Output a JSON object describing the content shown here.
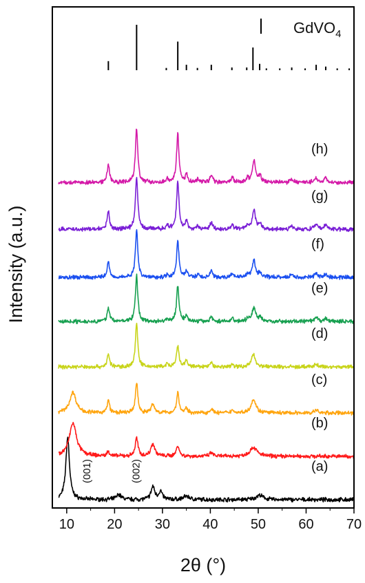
{
  "chart_data": {
    "type": "line",
    "xlabel": "2θ (°)",
    "ylabel": "Intensity (a.u.)",
    "xlim": [
      7,
      70
    ],
    "x_ticks": [
      10,
      20,
      30,
      40,
      50,
      60,
      70
    ],
    "reference": {
      "name": "GdVO4",
      "color": "#000000",
      "peaks": [
        {
          "x": 18.7,
          "h": 0.2
        },
        {
          "x": 24.6,
          "h": 1.0
        },
        {
          "x": 30.8,
          "h": 0.05
        },
        {
          "x": 33.2,
          "h": 0.63
        },
        {
          "x": 35.0,
          "h": 0.12
        },
        {
          "x": 37.3,
          "h": 0.05
        },
        {
          "x": 40.2,
          "h": 0.12
        },
        {
          "x": 44.5,
          "h": 0.06
        },
        {
          "x": 47.6,
          "h": 0.06
        },
        {
          "x": 48.9,
          "h": 0.5
        },
        {
          "x": 50.3,
          "h": 0.14
        },
        {
          "x": 51.7,
          "h": 0.04
        },
        {
          "x": 54.5,
          "h": 0.04
        },
        {
          "x": 57.0,
          "h": 0.06
        },
        {
          "x": 59.8,
          "h": 0.04
        },
        {
          "x": 62.1,
          "h": 0.12
        },
        {
          "x": 64.1,
          "h": 0.08
        },
        {
          "x": 66.5,
          "h": 0.04
        },
        {
          "x": 69.0,
          "h": 0.04
        }
      ]
    },
    "series": [
      {
        "name": "(a)",
        "color": "#000000",
        "peaks": [
          {
            "x": 10.2,
            "h": 4.3,
            "w": 0.45
          },
          {
            "x": 20.9,
            "h": 0.35,
            "w": 0.6
          },
          {
            "x": 28.0,
            "h": 0.9,
            "w": 0.45
          },
          {
            "x": 29.6,
            "h": 0.55,
            "w": 0.45
          },
          {
            "x": 35.0,
            "h": 0.25,
            "w": 0.7
          },
          {
            "x": 50.3,
            "h": 0.3,
            "w": 0.9
          }
        ],
        "annotations": [
          {
            "text": "(001)",
            "x": 10.6
          },
          {
            "text": "(002)",
            "x": 20.9
          }
        ]
      },
      {
        "name": "(b)",
        "color": "#ff1a1a",
        "peaks": [
          {
            "x": 11.3,
            "h": 2.4,
            "w": 0.9
          },
          {
            "x": 18.7,
            "h": 0.35,
            "w": 0.3
          },
          {
            "x": 24.6,
            "h": 1.3,
            "w": 0.35
          },
          {
            "x": 28.0,
            "h": 0.9,
            "w": 0.5
          },
          {
            "x": 33.2,
            "h": 0.8,
            "w": 0.35
          },
          {
            "x": 40.2,
            "h": 0.25,
            "w": 0.4
          },
          {
            "x": 49.0,
            "h": 0.65,
            "w": 0.9
          }
        ]
      },
      {
        "name": "(c)",
        "color": "#ffa50f",
        "peaks": [
          {
            "x": 11.3,
            "h": 1.5,
            "w": 0.8
          },
          {
            "x": 18.7,
            "h": 0.9,
            "w": 0.3
          },
          {
            "x": 24.6,
            "h": 2.2,
            "w": 0.3
          },
          {
            "x": 28.0,
            "h": 0.6,
            "w": 0.45
          },
          {
            "x": 33.2,
            "h": 1.5,
            "w": 0.3
          },
          {
            "x": 35.0,
            "h": 0.3,
            "w": 0.35
          },
          {
            "x": 40.2,
            "h": 0.3,
            "w": 0.35
          },
          {
            "x": 44.6,
            "h": 0.2,
            "w": 0.35
          },
          {
            "x": 49.0,
            "h": 1.0,
            "w": 0.6
          },
          {
            "x": 62.1,
            "h": 0.2,
            "w": 0.45
          }
        ]
      },
      {
        "name": "(d)",
        "color": "#c8d41a",
        "peaks": [
          {
            "x": 18.7,
            "h": 0.9,
            "w": 0.3
          },
          {
            "x": 24.6,
            "h": 3.1,
            "w": 0.3
          },
          {
            "x": 31.0,
            "h": 0.2,
            "w": 0.3
          },
          {
            "x": 33.2,
            "h": 1.5,
            "w": 0.3
          },
          {
            "x": 35.0,
            "h": 0.45,
            "w": 0.3
          },
          {
            "x": 40.2,
            "h": 0.3,
            "w": 0.3
          },
          {
            "x": 44.6,
            "h": 0.2,
            "w": 0.3
          },
          {
            "x": 49.0,
            "h": 0.9,
            "w": 0.5
          },
          {
            "x": 62.1,
            "h": 0.2,
            "w": 0.4
          }
        ]
      },
      {
        "name": "(e)",
        "color": "#17a050",
        "peaks": [
          {
            "x": 18.7,
            "h": 1.0,
            "w": 0.3
          },
          {
            "x": 24.6,
            "h": 3.3,
            "w": 0.3
          },
          {
            "x": 31.0,
            "h": 0.2,
            "w": 0.3
          },
          {
            "x": 33.2,
            "h": 2.6,
            "w": 0.3
          },
          {
            "x": 35.0,
            "h": 0.45,
            "w": 0.3
          },
          {
            "x": 40.2,
            "h": 0.35,
            "w": 0.3
          },
          {
            "x": 44.6,
            "h": 0.25,
            "w": 0.3
          },
          {
            "x": 47.8,
            "h": 0.2,
            "w": 0.3
          },
          {
            "x": 49.1,
            "h": 1.0,
            "w": 0.45
          },
          {
            "x": 50.4,
            "h": 0.3,
            "w": 0.3
          },
          {
            "x": 62.1,
            "h": 0.25,
            "w": 0.4
          },
          {
            "x": 64.1,
            "h": 0.2,
            "w": 0.4
          }
        ]
      },
      {
        "name": "(f)",
        "color": "#1a4ff0",
        "peaks": [
          {
            "x": 18.7,
            "h": 1.1,
            "w": 0.3
          },
          {
            "x": 24.6,
            "h": 3.4,
            "w": 0.3
          },
          {
            "x": 31.0,
            "h": 0.2,
            "w": 0.3
          },
          {
            "x": 33.2,
            "h": 2.6,
            "w": 0.3
          },
          {
            "x": 35.0,
            "h": 0.45,
            "w": 0.3
          },
          {
            "x": 37.4,
            "h": 0.2,
            "w": 0.3
          },
          {
            "x": 40.2,
            "h": 0.45,
            "w": 0.3
          },
          {
            "x": 44.6,
            "h": 0.3,
            "w": 0.3
          },
          {
            "x": 47.8,
            "h": 0.25,
            "w": 0.3
          },
          {
            "x": 49.1,
            "h": 1.2,
            "w": 0.4
          },
          {
            "x": 50.4,
            "h": 0.35,
            "w": 0.3
          },
          {
            "x": 57.0,
            "h": 0.2,
            "w": 0.4
          },
          {
            "x": 62.1,
            "h": 0.3,
            "w": 0.35
          },
          {
            "x": 64.1,
            "h": 0.25,
            "w": 0.35
          }
        ]
      },
      {
        "name": "(g)",
        "color": "#7a1fd6",
        "peaks": [
          {
            "x": 18.7,
            "h": 1.2,
            "w": 0.3
          },
          {
            "x": 24.6,
            "h": 3.6,
            "w": 0.3
          },
          {
            "x": 31.0,
            "h": 0.25,
            "w": 0.3
          },
          {
            "x": 33.2,
            "h": 3.3,
            "w": 0.3
          },
          {
            "x": 35.0,
            "h": 0.5,
            "w": 0.3
          },
          {
            "x": 37.4,
            "h": 0.2,
            "w": 0.3
          },
          {
            "x": 40.2,
            "h": 0.5,
            "w": 0.3
          },
          {
            "x": 44.6,
            "h": 0.35,
            "w": 0.3
          },
          {
            "x": 47.8,
            "h": 0.25,
            "w": 0.3
          },
          {
            "x": 49.1,
            "h": 1.3,
            "w": 0.4
          },
          {
            "x": 50.4,
            "h": 0.4,
            "w": 0.3
          },
          {
            "x": 57.0,
            "h": 0.2,
            "w": 0.4
          },
          {
            "x": 62.1,
            "h": 0.35,
            "w": 0.35
          },
          {
            "x": 64.1,
            "h": 0.3,
            "w": 0.35
          }
        ]
      },
      {
        "name": "(h)",
        "color": "#d41aa8",
        "peaks": [
          {
            "x": 18.7,
            "h": 1.2,
            "w": 0.3
          },
          {
            "x": 24.6,
            "h": 3.7,
            "w": 0.3
          },
          {
            "x": 31.0,
            "h": 0.25,
            "w": 0.3
          },
          {
            "x": 33.2,
            "h": 3.3,
            "w": 0.3
          },
          {
            "x": 35.0,
            "h": 0.5,
            "w": 0.3
          },
          {
            "x": 37.4,
            "h": 0.2,
            "w": 0.3
          },
          {
            "x": 40.2,
            "h": 0.5,
            "w": 0.3
          },
          {
            "x": 44.6,
            "h": 0.35,
            "w": 0.3
          },
          {
            "x": 47.8,
            "h": 0.25,
            "w": 0.3
          },
          {
            "x": 49.1,
            "h": 1.5,
            "w": 0.4
          },
          {
            "x": 50.4,
            "h": 0.45,
            "w": 0.3
          },
          {
            "x": 57.0,
            "h": 0.2,
            "w": 0.4
          },
          {
            "x": 62.1,
            "h": 0.35,
            "w": 0.35
          },
          {
            "x": 64.1,
            "h": 0.3,
            "w": 0.35
          }
        ]
      }
    ]
  }
}
